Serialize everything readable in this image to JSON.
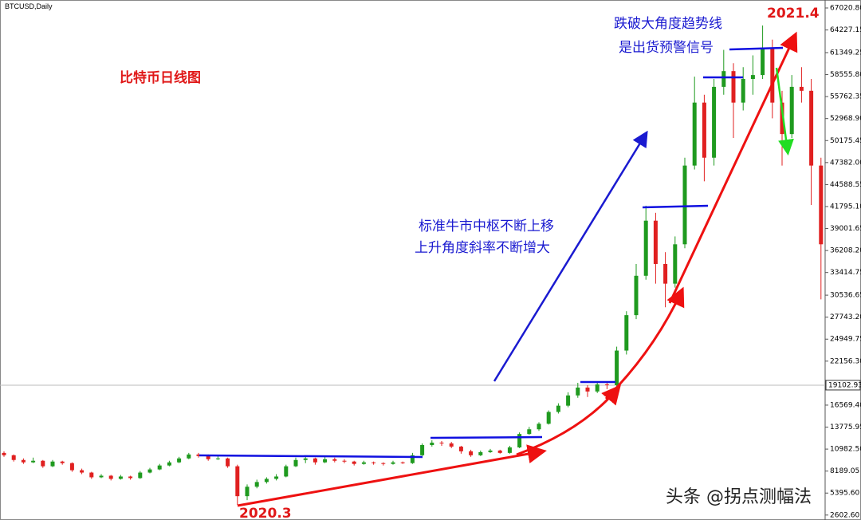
{
  "chart_data": {
    "type": "candlestick",
    "title": "BTCUSD,Daily",
    "ohlc": [
      [
        10500,
        10700,
        10000,
        10200
      ],
      [
        10200,
        10300,
        9400,
        9600
      ],
      [
        9600,
        9800,
        9100,
        9300
      ],
      [
        9300,
        9900,
        9200,
        9500
      ],
      [
        9500,
        9600,
        8600,
        8800
      ],
      [
        8800,
        9600,
        8700,
        9400
      ],
      [
        9400,
        9500,
        9000,
        9200
      ],
      [
        9200,
        9300,
        8100,
        8300
      ],
      [
        8300,
        8500,
        7800,
        8000
      ],
      [
        8000,
        8100,
        7200,
        7400
      ],
      [
        7400,
        7800,
        7300,
        7600
      ],
      [
        7600,
        7700,
        7000,
        7200
      ],
      [
        7200,
        7700,
        7100,
        7500
      ],
      [
        7500,
        7600,
        7100,
        7300
      ],
      [
        7300,
        8200,
        7200,
        8000
      ],
      [
        8000,
        8600,
        7900,
        8400
      ],
      [
        8400,
        9100,
        8300,
        8900
      ],
      [
        8900,
        9500,
        8800,
        9300
      ],
      [
        9300,
        10000,
        9200,
        9800
      ],
      [
        9800,
        10500,
        9700,
        10300
      ],
      [
        10300,
        10500,
        9900,
        10100
      ],
      [
        10100,
        10300,
        9500,
        9700
      ],
      [
        9700,
        10100,
        9600,
        9800
      ],
      [
        9800,
        9900,
        8600,
        8800
      ],
      [
        8800,
        9000,
        3900,
        5000
      ],
      [
        5000,
        6500,
        4500,
        6200
      ],
      [
        6200,
        7100,
        6000,
        6800
      ],
      [
        6800,
        7400,
        6600,
        7200
      ],
      [
        7200,
        7800,
        7000,
        7500
      ],
      [
        7500,
        9000,
        7400,
        8800
      ],
      [
        8800,
        9900,
        8700,
        9600
      ],
      [
        9600,
        10000,
        9200,
        9800
      ],
      [
        9800,
        9900,
        9000,
        9300
      ],
      [
        9300,
        10000,
        9200,
        9700
      ],
      [
        9700,
        9900,
        9300,
        9500
      ],
      [
        9500,
        9700,
        9200,
        9400
      ],
      [
        9400,
        9500,
        8900,
        9100
      ],
      [
        9100,
        9500,
        9000,
        9300
      ],
      [
        9300,
        9400,
        9000,
        9200
      ],
      [
        9200,
        9300,
        8900,
        9100
      ],
      [
        9100,
        9500,
        9000,
        9300
      ],
      [
        9300,
        9400,
        9100,
        9200
      ],
      [
        9200,
        10500,
        9100,
        10200
      ],
      [
        10200,
        11700,
        10100,
        11500
      ],
      [
        11500,
        12100,
        11300,
        11800
      ],
      [
        11800,
        12000,
        11400,
        11700
      ],
      [
        11700,
        11900,
        11100,
        11300
      ],
      [
        11300,
        11400,
        10400,
        10700
      ],
      [
        10700,
        10900,
        10000,
        10200
      ],
      [
        10200,
        10800,
        10100,
        10600
      ],
      [
        10600,
        11000,
        10500,
        10800
      ],
      [
        10800,
        10900,
        10400,
        10500
      ],
      [
        10500,
        11400,
        10400,
        11200
      ],
      [
        11200,
        13100,
        11100,
        12900
      ],
      [
        12900,
        13800,
        12800,
        13500
      ],
      [
        13500,
        14400,
        13300,
        14200
      ],
      [
        14200,
        15900,
        14100,
        15700
      ],
      [
        15700,
        16800,
        15500,
        16500
      ],
      [
        16500,
        18200,
        16300,
        17800
      ],
      [
        17800,
        19400,
        17500,
        18800
      ],
      [
        18800,
        19100,
        17600,
        18300
      ],
      [
        18300,
        19600,
        18100,
        19200
      ],
      [
        19200,
        19500,
        18600,
        19100
      ],
      [
        19100,
        24000,
        19000,
        23500
      ],
      [
        23500,
        28500,
        23000,
        28000
      ],
      [
        28000,
        34500,
        27500,
        33000
      ],
      [
        33000,
        41900,
        32500,
        40000
      ],
      [
        40000,
        41000,
        32000,
        34500
      ],
      [
        34500,
        36000,
        29000,
        32000
      ],
      [
        32000,
        38000,
        31500,
        37000
      ],
      [
        37000,
        48000,
        36500,
        47000
      ],
      [
        47000,
        58300,
        46500,
        55000
      ],
      [
        55000,
        56000,
        45000,
        48000
      ],
      [
        48000,
        58000,
        47000,
        57000
      ],
      [
        57000,
        61700,
        56000,
        59000
      ],
      [
        59000,
        60000,
        50500,
        55000
      ],
      [
        55000,
        59500,
        54000,
        58000
      ],
      [
        58000,
        61000,
        56000,
        58500
      ],
      [
        58500,
        64800,
        58000,
        62000
      ],
      [
        62000,
        63000,
        53000,
        55000
      ],
      [
        55000,
        56500,
        47000,
        51000
      ],
      [
        51000,
        58500,
        50500,
        57000
      ],
      [
        57000,
        59500,
        55000,
        56500
      ],
      [
        56500,
        58000,
        42000,
        47000
      ],
      [
        47000,
        48000,
        30000,
        37000
      ]
    ],
    "up_color": "#1f9a1f",
    "down_color": "#e02020",
    "ylim": [
      1975,
      68034
    ],
    "yticks": [
      {
        "value": 67020.8,
        "label": "67020.80"
      },
      64227.15,
      61349.25,
      {
        "value": 58555.8,
        "label": "58555.80"
      },
      55762.35,
      {
        "value": 52968.9,
        "label": "52968.90"
      },
      50175.45,
      {
        "value": 47382,
        "label": "47382.00"
      },
      44588.55,
      {
        "value": 41795.1,
        "label": "41795.10"
      },
      39001.65,
      {
        "value": 36208.2,
        "label": "36208.20"
      },
      33414.75,
      30536.65,
      {
        "value": 27743.2,
        "label": "27743.20"
      },
      24949.75,
      {
        "value": 22156.3,
        "label": "22156.30"
      },
      {
        "value": 16569.4,
        "label": "16569.40"
      },
      13775.95,
      {
        "value": 10982.5,
        "label": "10982.50"
      },
      8189.05,
      {
        "value": 5395.6,
        "label": "5395.60"
      },
      {
        "value": 2602.6,
        "label": "2602.60"
      }
    ],
    "last_price": 19102.93,
    "annotations": {
      "chart_label": "比特币日线图",
      "trend_note": [
        "标准牛市中枢不断上移",
        "上升角度斜率不断增大"
      ],
      "break_note": [
        "跌破大角度趋势线",
        "是出货预警信号"
      ],
      "start_label": "2020.3",
      "peak_label": "2021.4"
    }
  },
  "watermark": "头条 @拐点测幅法"
}
